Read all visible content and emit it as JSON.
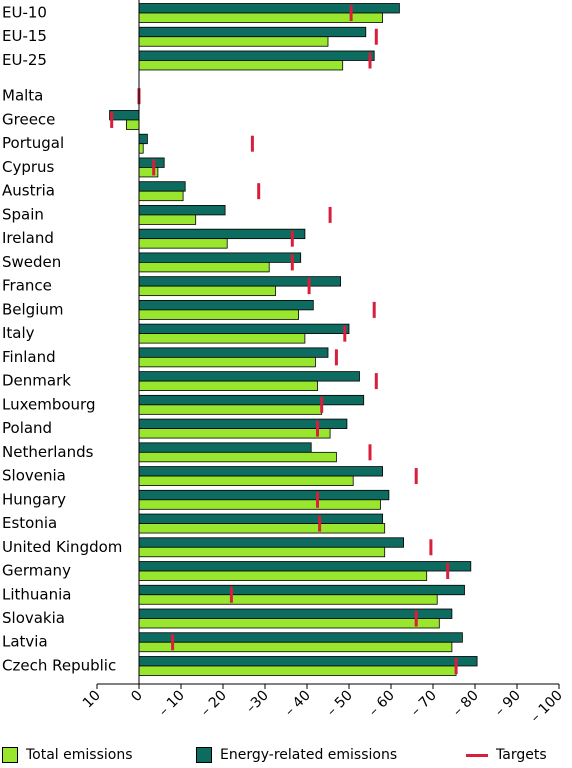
{
  "chart_data": {
    "type": "bar",
    "orientation": "horizontal",
    "categories": [
      "EU-10",
      "EU-15",
      "EU-25",
      "Malta",
      "Greece",
      "Portugal",
      "Cyprus",
      "Austria",
      "Spain",
      "Ireland",
      "Sweden",
      "France",
      "Belgium",
      "Italy",
      "Finland",
      "Denmark",
      "Luxembourg",
      "Poland",
      "Netherlands",
      "Slovenia",
      "Hungary",
      "Estonia",
      "United Kingdom",
      "Germany",
      "Lithuania",
      "Slovakia",
      "Latvia",
      "Czech Republic"
    ],
    "series": [
      {
        "name": "Energy-related emissions",
        "color": "#0e6b60",
        "values": [
          -62,
          -54,
          -56,
          null,
          7,
          -2,
          -6,
          -11,
          -20.5,
          -39.5,
          -38.5,
          -48,
          -41.5,
          -50,
          -45,
          -52.5,
          -53.5,
          -49.5,
          -41,
          -58,
          -59.5,
          -58,
          -63,
          -79,
          -77.5,
          -74.5,
          -77,
          -80.5
        ]
      },
      {
        "name": "Total emissions",
        "color": "#99e62e",
        "values": [
          -58,
          -45,
          -48.5,
          null,
          3,
          -1,
          -4.5,
          -10.5,
          -13.5,
          -21,
          -31,
          -32.5,
          -38,
          -39.5,
          -42,
          -42.5,
          -43.5,
          -45.5,
          -47,
          -51,
          -57.5,
          -58.5,
          -58.5,
          -68.5,
          -71,
          -71.5,
          -74.5,
          -75.5
        ]
      },
      {
        "name": "Targets",
        "color": "#d91e3c",
        "values": [
          -50.5,
          -56.5,
          -55,
          0,
          6.5,
          -27,
          -3.5,
          -28.5,
          -45.5,
          -36.5,
          -36.5,
          -40.5,
          -56,
          -49,
          -47,
          -56.5,
          -43.5,
          -42.5,
          -55,
          -66,
          -42.5,
          -43,
          -69.5,
          -73.5,
          -22,
          -66,
          -8,
          -75.5
        ]
      }
    ],
    "xlim": [
      10,
      -100
    ],
    "xticks": [
      10,
      0,
      -10,
      -20,
      -30,
      -40,
      -50,
      -60,
      -70,
      -80,
      -90,
      -100
    ],
    "xtick_labels": [
      "10",
      "0",
      "– 10",
      "– 20",
      "–30",
      "– 40",
      "– 50",
      "– 60",
      "– 70",
      "– 80",
      "– 90",
      "– 100"
    ],
    "grid": false,
    "legend_position": "bottom"
  },
  "legend": {
    "total": "Total emissions",
    "energy": "Energy-related emissions",
    "targets": "Targets"
  }
}
